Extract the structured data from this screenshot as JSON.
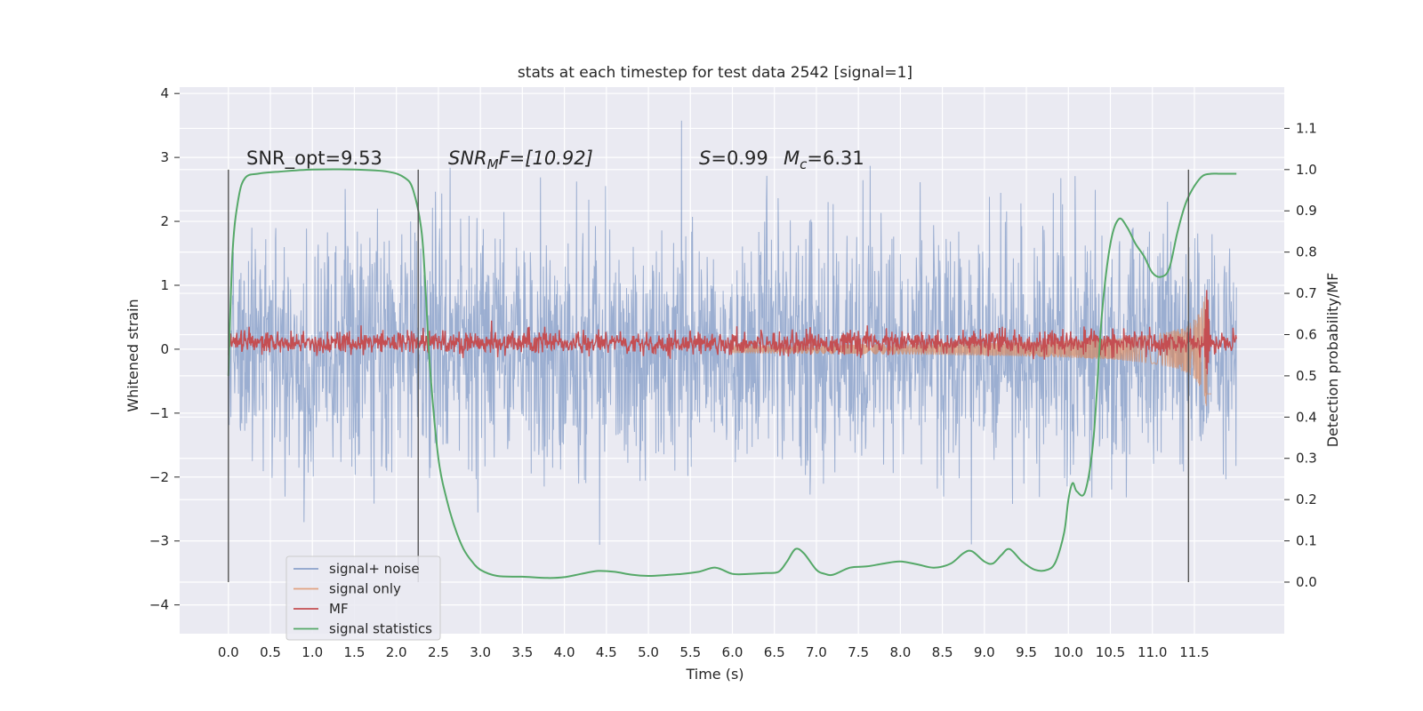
{
  "chart_data": {
    "type": "line",
    "title": "stats at each timestep for test data 2542 [signal=1]",
    "xlabel": "Time (s)",
    "ylabel": "Whitened strain",
    "ylabel_right": "Detection probability/MF",
    "xlim": [
      -0.58,
      12.57
    ],
    "ylim": [
      -4.45,
      4.1
    ],
    "ylim_right": [
      -0.125,
      1.2
    ],
    "x_ticks": [
      "0.0",
      "0.5",
      "1.0",
      "1.5",
      "2.0",
      "2.5",
      "3.0",
      "3.5",
      "4.0",
      "4.5",
      "5.0",
      "5.5",
      "6.0",
      "6.5",
      "7.0",
      "7.5",
      "8.0",
      "8.5",
      "9.0",
      "9.5",
      "10.0",
      "10.5",
      "11.0",
      "11.5"
    ],
    "y_ticks_left": [
      "−4",
      "−3",
      "−2",
      "−1",
      "0",
      "1",
      "2",
      "3",
      "4"
    ],
    "y_ticks_right": [
      "0.0",
      "0.1",
      "0.2",
      "0.3",
      "0.4",
      "0.5",
      "0.6",
      "0.7",
      "0.8",
      "0.9",
      "1.0",
      "1.1"
    ],
    "grid": true,
    "legend_position": "lower-left",
    "annotations": {
      "snr_opt": "SNR_opt=9.53",
      "snr_mf": "SNR",
      "snr_mf_sub": "M",
      "snr_mf_tail": "F=[10.92]",
      "s_sym": "S",
      "s_val": "=0.99",
      "mc_sym": "M",
      "mc_sub": "c",
      "mc_val": "=6.31"
    },
    "vertical_lines_x": [
      0.0,
      2.26,
      11.43
    ],
    "series": [
      {
        "name": "signal+ noise",
        "color": "#4c72b0",
        "kind": "noise",
        "x_range": [
          0.0,
          12.0
        ],
        "spread_1sigma": 1.0,
        "max_abs": 3.8
      },
      {
        "name": "signal only",
        "color": "#dd8452",
        "kind": "chirp",
        "x_range": [
          6.0,
          11.7
        ],
        "peak_amplitude": 1.0,
        "peak_x": 11.65
      },
      {
        "name": "MF",
        "color": "#c44e52",
        "kind": "noise",
        "x_range": [
          0.0,
          12.0
        ],
        "center": 0.1,
        "spread": 0.1,
        "peak_x": 11.65,
        "peak_value": 1.0
      },
      {
        "name": "signal statistics",
        "color": "#55a868",
        "kind": "curve",
        "axis": "right",
        "x": [
          0.0,
          0.05,
          0.12,
          0.2,
          0.35,
          0.6,
          1.0,
          1.5,
          1.9,
          2.1,
          2.2,
          2.3,
          2.35,
          2.4,
          2.5,
          2.6,
          2.7,
          2.8,
          2.9,
          3.0,
          3.2,
          3.5,
          3.8,
          4.0,
          4.2,
          4.4,
          4.6,
          4.8,
          5.0,
          5.2,
          5.4,
          5.6,
          5.8,
          6.0,
          6.2,
          6.4,
          6.55,
          6.65,
          6.75,
          6.85,
          7.0,
          7.1,
          7.2,
          7.4,
          7.6,
          7.8,
          8.0,
          8.2,
          8.4,
          8.6,
          8.75,
          8.85,
          9.0,
          9.1,
          9.2,
          9.3,
          9.45,
          9.6,
          9.75,
          9.85,
          9.95,
          10.0,
          10.05,
          10.1,
          10.2,
          10.3,
          10.4,
          10.5,
          10.6,
          10.7,
          10.8,
          10.9,
          11.0,
          11.1,
          11.2,
          11.3,
          11.4,
          11.5,
          11.6,
          11.7,
          11.8,
          11.9,
          12.0
        ],
        "y": [
          0.5,
          0.8,
          0.93,
          0.98,
          0.99,
          0.995,
          1.0,
          1.0,
          0.995,
          0.98,
          0.95,
          0.85,
          0.7,
          0.52,
          0.3,
          0.2,
          0.13,
          0.08,
          0.05,
          0.03,
          0.015,
          0.013,
          0.01,
          0.012,
          0.02,
          0.027,
          0.025,
          0.018,
          0.015,
          0.017,
          0.02,
          0.025,
          0.035,
          0.02,
          0.02,
          0.022,
          0.025,
          0.05,
          0.08,
          0.07,
          0.03,
          0.02,
          0.018,
          0.035,
          0.038,
          0.045,
          0.05,
          0.043,
          0.035,
          0.045,
          0.07,
          0.075,
          0.05,
          0.045,
          0.065,
          0.08,
          0.05,
          0.03,
          0.03,
          0.05,
          0.12,
          0.2,
          0.24,
          0.22,
          0.22,
          0.35,
          0.65,
          0.82,
          0.88,
          0.86,
          0.82,
          0.79,
          0.75,
          0.74,
          0.76,
          0.85,
          0.92,
          0.96,
          0.985,
          0.99,
          0.99,
          0.99,
          0.99
        ]
      }
    ]
  }
}
